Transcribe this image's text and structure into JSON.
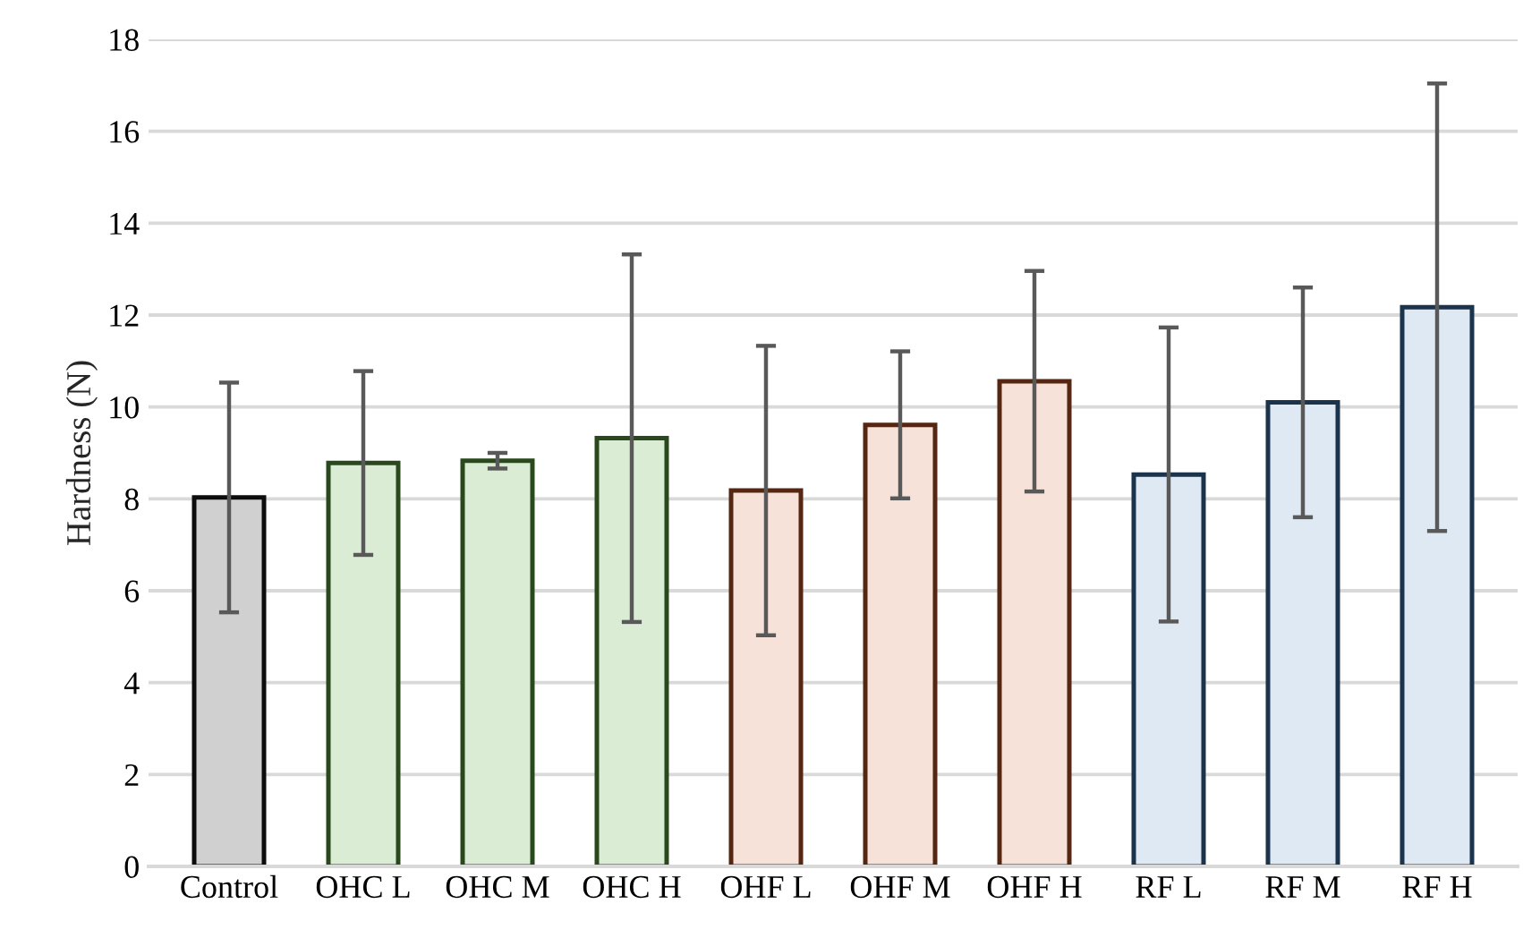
{
  "chart_data": {
    "type": "bar",
    "ylabel": "Hardness (N)",
    "categories": [
      "Control",
      "OHC L",
      "OHC M",
      "OHC H",
      "OHF L",
      "OHF M",
      "OHF H",
      "RF L",
      "RF M",
      "RF H"
    ],
    "values": [
      8.03,
      8.78,
      8.83,
      9.32,
      8.18,
      9.61,
      10.56,
      8.53,
      10.1,
      12.17
    ],
    "errors": [
      2.5,
      2.0,
      0.17,
      4.0,
      3.15,
      1.6,
      2.4,
      3.2,
      2.5,
      4.87
    ],
    "colors": [
      "#d0d0d0",
      "#d9f0d0",
      "#d9f0d0",
      "#d9f0d0",
      "#fbe0d4",
      "#fbe0d4",
      "#fbe0d4",
      "#dce9f6",
      "#dce9f6",
      "#dce9f6"
    ],
    "ylim": [
      0,
      18
    ],
    "yticks": [
      0,
      2,
      4,
      6,
      8,
      10,
      12,
      14,
      16,
      18
    ],
    "grid": "y"
  }
}
